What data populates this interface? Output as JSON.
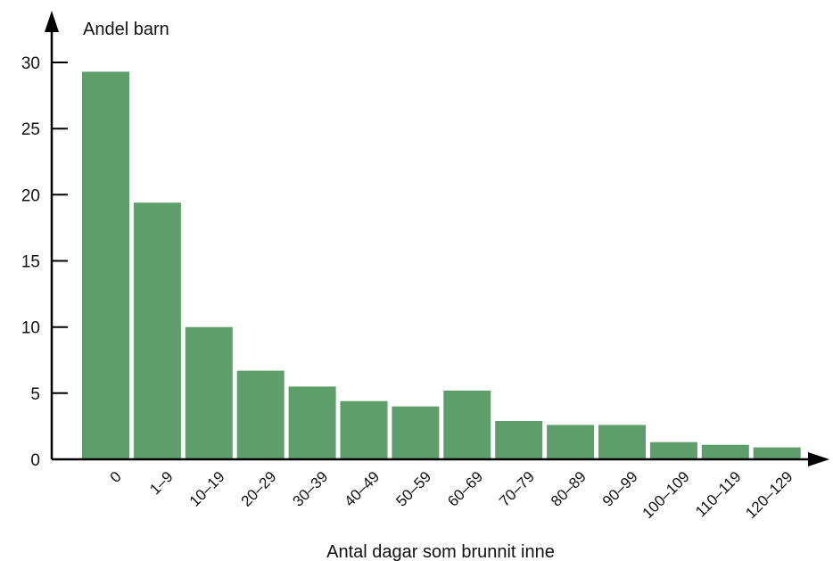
{
  "chart_data": {
    "type": "bar",
    "title": "",
    "ylabel": "Andel barn",
    "xlabel": "Antal dagar som brunnit inne",
    "ylim": [
      0,
      32
    ],
    "yticks": [
      0,
      5,
      10,
      15,
      20,
      25,
      30
    ],
    "categories": [
      "0",
      "1–9",
      "10–19",
      "20–29",
      "30–39",
      "40–49",
      "50–59",
      "60–69",
      "70–79",
      "80–89",
      "90–99",
      "100–109",
      "110–119",
      "120–129"
    ],
    "values": [
      29.3,
      19.4,
      10.0,
      6.7,
      5.5,
      4.4,
      4.0,
      5.2,
      2.9,
      2.6,
      2.6,
      1.3,
      1.1,
      0.9
    ],
    "bar_color": "#5e9e6a",
    "grid": false,
    "legend": "none"
  }
}
